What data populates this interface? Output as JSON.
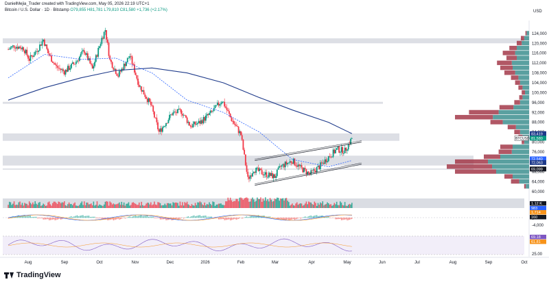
{
  "header": {
    "title": "Bitcoin / U.S. Dollar · 1D · Bitstamp",
    "ohlc": "O79,855 H81,781 L79,810 C81,580 +1,736 (+2.17%)",
    "author": "DanielMejia_Trader created with TradingView.com, May 05, 2026 22:19 UTC+1"
  },
  "brand": {
    "name": "TradingView"
  },
  "colors": {
    "up": "#089981",
    "down": "#f23645",
    "ma200": "#1e3a8a",
    "ma50": "#2962ff",
    "zone": "#d1d4dc",
    "vp_up": "#3d8f8f",
    "vp_down": "#a33a4a"
  },
  "chart_data": {
    "type": "candlestick",
    "symbol": "BTCUSD",
    "currency": "USD",
    "x_labels": [
      "Aug",
      "Sep",
      "Oct",
      "Nov",
      "Dec",
      "2026",
      "Feb",
      "Mar",
      "Apr",
      "May",
      "Jun",
      "Jul",
      "Aug",
      "Sep",
      "Oct"
    ],
    "y_ticks": [
      124000,
      120000,
      116000,
      112000,
      108000,
      104000,
      100000,
      96000,
      92000,
      88000,
      84000,
      80000,
      76000,
      72000,
      68000,
      64000,
      60000
    ],
    "ylim": [
      58000,
      127000
    ],
    "price_series": [
      {
        "x": "Jul 15",
        "y": 117500
      },
      {
        "x": "Jul 20",
        "y": 119000
      },
      {
        "x": "Jul 28",
        "y": 118000
      },
      {
        "x": "Aug 2",
        "y": 113500
      },
      {
        "x": "Aug 9",
        "y": 117500
      },
      {
        "x": "Aug 14",
        "y": 121500
      },
      {
        "x": "Aug 18",
        "y": 116000
      },
      {
        "x": "Aug 25",
        "y": 110500
      },
      {
        "x": "Sep 1",
        "y": 108500
      },
      {
        "x": "Sep 10",
        "y": 112000
      },
      {
        "x": "Sep 18",
        "y": 117000
      },
      {
        "x": "Sep 25",
        "y": 109500
      },
      {
        "x": "Oct 3",
        "y": 122000
      },
      {
        "x": "Oct 6",
        "y": 125500
      },
      {
        "x": "Oct 10",
        "y": 113000
      },
      {
        "x": "Oct 17",
        "y": 107000
      },
      {
        "x": "Oct 27",
        "y": 115000
      },
      {
        "x": "Nov 4",
        "y": 103000
      },
      {
        "x": "Nov 14",
        "y": 95000
      },
      {
        "x": "Nov 21",
        "y": 84000
      },
      {
        "x": "Dec 2",
        "y": 91500
      },
      {
        "x": "Dec 10",
        "y": 92500
      },
      {
        "x": "Dec 18",
        "y": 86500
      },
      {
        "x": "Dec 26",
        "y": 88000
      },
      {
        "x": "Jan 5",
        "y": 92000
      },
      {
        "x": "Jan 14",
        "y": 97000
      },
      {
        "x": "Jan 21",
        "y": 90000
      },
      {
        "x": "Jan 30",
        "y": 83000
      },
      {
        "x": "Feb 5",
        "y": 65000
      },
      {
        "x": "Feb 10",
        "y": 69000
      },
      {
        "x": "Feb 20",
        "y": 67000
      },
      {
        "x": "Feb 28",
        "y": 66000
      },
      {
        "x": "Mar 5",
        "y": 70000
      },
      {
        "x": "Mar 15",
        "y": 72500
      },
      {
        "x": "Mar 22",
        "y": 69500
      },
      {
        "x": "Mar 30",
        "y": 67000
      },
      {
        "x": "Apr 7",
        "y": 70000
      },
      {
        "x": "Apr 15",
        "y": 74000
      },
      {
        "x": "Apr 22",
        "y": 77000
      },
      {
        "x": "Apr 29",
        "y": 76500
      },
      {
        "x": "May 5",
        "y": 81580
      }
    ],
    "ma200": [
      {
        "x": "Jul 15",
        "y": 97000
      },
      {
        "x": "Aug 15",
        "y": 102000
      },
      {
        "x": "Sep 15",
        "y": 106000
      },
      {
        "x": "Oct 15",
        "y": 109000
      },
      {
        "x": "Nov 15",
        "y": 110000
      },
      {
        "x": "Dec 15",
        "y": 108000
      },
      {
        "x": "Jan 15",
        "y": 104000
      },
      {
        "x": "Feb 15",
        "y": 98000
      },
      {
        "x": "Mar 15",
        "y": 93000
      },
      {
        "x": "Apr 15",
        "y": 88000
      },
      {
        "x": "May 5",
        "y": 83419
      }
    ],
    "ma50": [
      {
        "x": "Jul 15",
        "y": 106000
      },
      {
        "x": "Aug 15",
        "y": 115500
      },
      {
        "x": "Sep 15",
        "y": 113500
      },
      {
        "x": "Oct 15",
        "y": 114000
      },
      {
        "x": "Nov 15",
        "y": 108000
      },
      {
        "x": "Dec 15",
        "y": 97000
      },
      {
        "x": "Jan 15",
        "y": 92000
      },
      {
        "x": "Feb 15",
        "y": 84000
      },
      {
        "x": "Mar 15",
        "y": 73000
      },
      {
        "x": "Apr 15",
        "y": 70000
      },
      {
        "x": "May 5",
        "y": 72540
      }
    ],
    "zones": [
      [
        120000,
        122000
      ],
      [
        95500,
        96300
      ],
      [
        80500,
        83500
      ],
      [
        70500,
        74500
      ],
      [
        68800,
        69300
      ]
    ],
    "channel_upper": [
      {
        "x": "Feb 5",
        "y": 72500
      },
      {
        "x": "May 5",
        "y": 80000
      }
    ],
    "channel_lower": [
      {
        "x": "Feb 5",
        "y": 62500
      },
      {
        "x": "May 5",
        "y": 71000
      }
    ],
    "volume_profile": [
      {
        "price": 124000,
        "up": 6,
        "down": 3
      },
      {
        "price": 122000,
        "up": 12,
        "down": 8
      },
      {
        "price": 120000,
        "up": 18,
        "down": 12
      },
      {
        "price": 118000,
        "up": 30,
        "down": 18
      },
      {
        "price": 116000,
        "up": 34,
        "down": 30
      },
      {
        "price": 114000,
        "up": 30,
        "down": 25
      },
      {
        "price": 112000,
        "up": 42,
        "down": 36
      },
      {
        "price": 110000,
        "up": 40,
        "down": 30
      },
      {
        "price": 108000,
        "up": 34,
        "down": 26
      },
      {
        "price": 106000,
        "up": 26,
        "down": 18
      },
      {
        "price": 104000,
        "up": 22,
        "down": 12
      },
      {
        "price": 102000,
        "up": 16,
        "down": 10
      },
      {
        "price": 100000,
        "up": 10,
        "down": 8
      },
      {
        "price": 98000,
        "up": 16,
        "down": 8
      },
      {
        "price": 96000,
        "up": 22,
        "down": 14
      },
      {
        "price": 94000,
        "up": 38,
        "down": 34
      },
      {
        "price": 92000,
        "up": 74,
        "down": 72
      },
      {
        "price": 90000,
        "up": 88,
        "down": 92
      },
      {
        "price": 88000,
        "up": 64,
        "down": 30
      },
      {
        "price": 86000,
        "up": 32,
        "down": 20
      },
      {
        "price": 84000,
        "up": 22,
        "down": 14
      },
      {
        "price": 82000,
        "up": 16,
        "down": 10
      },
      {
        "price": 80000,
        "up": 12,
        "down": 6
      },
      {
        "price": 78000,
        "up": 40,
        "down": 30
      },
      {
        "price": 76000,
        "up": 42,
        "down": 32
      },
      {
        "price": 74000,
        "up": 70,
        "down": 40
      },
      {
        "price": 72000,
        "up": 100,
        "down": 80
      },
      {
        "price": 70000,
        "up": 90,
        "down": 110
      },
      {
        "price": 68000,
        "up": 80,
        "down": 100
      },
      {
        "price": 66000,
        "up": 40,
        "down": 20
      },
      {
        "price": 64000,
        "up": 24,
        "down": 20
      },
      {
        "price": 62000,
        "up": 8,
        "down": 4
      }
    ],
    "price_labels": [
      {
        "label": "83,419",
        "color": "#1e3a8a",
        "y": 83419
      },
      {
        "label": "81,580",
        "color": "#089981",
        "y": 81580
      },
      {
        "label": "BTCUSD",
        "color": "#131722",
        "y": 81580
      },
      {
        "label": "72,540",
        "color": "#2962ff",
        "y": 73200
      },
      {
        "label": "72,063",
        "color": "#1e3a8a",
        "y": 71700
      },
      {
        "label": "69,099",
        "color": "#131722",
        "y": 69100
      }
    ],
    "volume_labels": [
      {
        "label": "1.12 K",
        "color": "#131722"
      },
      {
        "label": "983",
        "color": "#131722"
      }
    ],
    "macd_labels": [
      {
        "label": "1,714",
        "color": "#f7931a"
      },
      {
        "label": "160",
        "color": "#131722"
      }
    ],
    "macd_ticks": [
      "0",
      "-4,000"
    ],
    "rsi_labels": [
      {
        "label": "69.18",
        "color": "#7e57c2"
      },
      {
        "label": "61.81",
        "color": "#f7931a"
      }
    ],
    "rsi_ticks": [
      "25.00"
    ]
  }
}
